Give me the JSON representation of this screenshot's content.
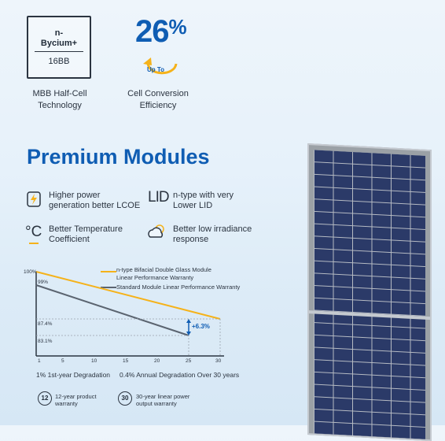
{
  "badges": {
    "tech_box": {
      "line1": "n-",
      "line2": "Bycium+",
      "line3": "16BB"
    },
    "tech_caption": [
      "MBB Half-Cell",
      "Technology"
    ],
    "efficiency_value": "26",
    "efficiency_unit": "%",
    "efficiency_upto": "Up To",
    "efficiency_caption": [
      "Cell Conversion",
      "Efficiency"
    ]
  },
  "title": "Premium Modules",
  "features": [
    {
      "icon": "lightning-icon",
      "lines": [
        "Higher power",
        "generation better LCOE"
      ]
    },
    {
      "icon": "lid-icon",
      "icon_text": "LID",
      "lines": [
        "n-type with very",
        "Lower LID"
      ]
    },
    {
      "icon": "thermometer-icon",
      "icon_text": "°C",
      "lines": [
        "Better Temperature",
        "Coefficient"
      ]
    },
    {
      "icon": "cloud-sun-icon",
      "lines": [
        "Better low irradiance",
        "response"
      ]
    }
  ],
  "chart_data": {
    "type": "line",
    "series": [
      {
        "name": "n-type Bifacial Double Glass Module Linear Performance Warranty",
        "color": "#f5b21a",
        "x": [
          1,
          30
        ],
        "y": [
          99,
          87.4
        ]
      },
      {
        "name": "Standard Module Linear Performance Warranty",
        "color": "#5b6470",
        "x": [
          1,
          25
        ],
        "y": [
          97,
          83.1
        ]
      }
    ],
    "legend": [
      [
        "n-type Bifacial Double Glass Module",
        "Linear Performance Warranty"
      ],
      [
        "Standard Module Linear Performance Warranty"
      ]
    ],
    "y_labels": [
      "100%",
      "99%",
      "87.4%",
      "83.1%"
    ],
    "x_ticks": [
      "1",
      "5",
      "10",
      "15",
      "20",
      "25",
      "30"
    ],
    "annotation": "+6.3%",
    "xlim": [
      1,
      30
    ]
  },
  "degradation": {
    "first_year": "1% 1st-year Degradation",
    "annual": "0.4% Annual Degradation Over 30 years"
  },
  "warranties": [
    {
      "icon_text": "12",
      "lines": [
        "12-year product",
        "warranty"
      ]
    },
    {
      "icon_text": "30",
      "lines": [
        "30-year linear power",
        "output warranty"
      ]
    }
  ]
}
